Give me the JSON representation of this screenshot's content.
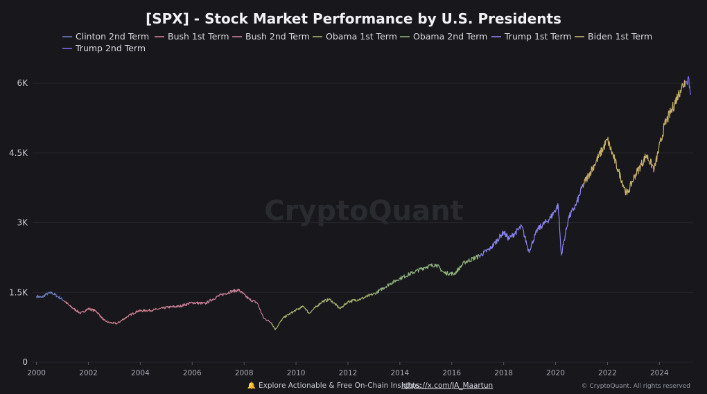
{
  "chart_data": {
    "type": "line",
    "title": "[SPX] - Stock Market Performance by U.S. Presidents",
    "ylim": [
      0,
      6300
    ],
    "xlim": [
      1999.85,
      2025.3
    ],
    "y_ticks": [
      {
        "value": 0,
        "label": "0"
      },
      {
        "value": 1500,
        "label": "1.5K"
      },
      {
        "value": 3000,
        "label": "3K"
      },
      {
        "value": 4500,
        "label": "4.5K"
      },
      {
        "value": 6000,
        "label": "6K"
      }
    ],
    "x_ticks": [
      {
        "value": 2000,
        "label": "2000"
      },
      {
        "value": 2002,
        "label": "2002"
      },
      {
        "value": 2004,
        "label": "2004"
      },
      {
        "value": 2006,
        "label": "2006"
      },
      {
        "value": 2008,
        "label": "2008"
      },
      {
        "value": 2010,
        "label": "2010"
      },
      {
        "value": 2012,
        "label": "2012"
      },
      {
        "value": 2014,
        "label": "2014"
      },
      {
        "value": 2016,
        "label": "2016"
      },
      {
        "value": 2018,
        "label": "2018"
      },
      {
        "value": 2020,
        "label": "2020"
      },
      {
        "value": 2022,
        "label": "2022"
      },
      {
        "value": 2024,
        "label": "2024"
      }
    ],
    "grid": true,
    "legend_position": "top",
    "series": [
      {
        "name": "Clinton 2nd Term",
        "color": "#6a7fc4",
        "points": [
          [
            2000.0,
            1420
          ],
          [
            2000.2,
            1390
          ],
          [
            2000.4,
            1470
          ],
          [
            2000.6,
            1490
          ],
          [
            2000.8,
            1420
          ],
          [
            2001.05,
            1330
          ]
        ]
      },
      {
        "name": "Bush 1st Term",
        "color": "#d07f8f",
        "points": [
          [
            2001.05,
            1330
          ],
          [
            2001.3,
            1200
          ],
          [
            2001.7,
            1050
          ],
          [
            2002.0,
            1150
          ],
          [
            2002.3,
            1100
          ],
          [
            2002.6,
            900
          ],
          [
            2002.8,
            850
          ],
          [
            2003.1,
            830
          ],
          [
            2003.5,
            980
          ],
          [
            2003.9,
            1100
          ],
          [
            2004.5,
            1120
          ],
          [
            2005.05,
            1180
          ]
        ]
      },
      {
        "name": "Bush 2nd Term",
        "color": "#c97f95",
        "points": [
          [
            2005.05,
            1180
          ],
          [
            2005.5,
            1200
          ],
          [
            2006.0,
            1280
          ],
          [
            2006.5,
            1260
          ],
          [
            2007.0,
            1420
          ],
          [
            2007.5,
            1520
          ],
          [
            2007.8,
            1550
          ],
          [
            2008.2,
            1350
          ],
          [
            2008.5,
            1280
          ],
          [
            2008.75,
            950
          ],
          [
            2009.05,
            850
          ]
        ]
      },
      {
        "name": "Obama 1st Term",
        "color": "#a7b06a",
        "points": [
          [
            2009.05,
            850
          ],
          [
            2009.2,
            700
          ],
          [
            2009.5,
            950
          ],
          [
            2010.0,
            1120
          ],
          [
            2010.3,
            1200
          ],
          [
            2010.5,
            1050
          ],
          [
            2011.0,
            1300
          ],
          [
            2011.3,
            1350
          ],
          [
            2011.7,
            1150
          ],
          [
            2012.0,
            1300
          ],
          [
            2012.5,
            1360
          ],
          [
            2013.05,
            1480
          ]
        ]
      },
      {
        "name": "Obama 2nd Term",
        "color": "#8fb27a",
        "points": [
          [
            2013.05,
            1480
          ],
          [
            2013.6,
            1680
          ],
          [
            2014.0,
            1800
          ],
          [
            2014.6,
            1950
          ],
          [
            2015.0,
            2050
          ],
          [
            2015.4,
            2100
          ],
          [
            2015.7,
            1920
          ],
          [
            2016.1,
            1900
          ],
          [
            2016.5,
            2150
          ],
          [
            2017.05,
            2280
          ]
        ]
      },
      {
        "name": "Trump 1st Term",
        "color": "#8a84f0",
        "points": [
          [
            2017.05,
            2280
          ],
          [
            2017.5,
            2450
          ],
          [
            2018.0,
            2800
          ],
          [
            2018.2,
            2650
          ],
          [
            2018.7,
            2920
          ],
          [
            2018.97,
            2380
          ],
          [
            2019.3,
            2850
          ],
          [
            2019.8,
            3100
          ],
          [
            2020.1,
            3380
          ],
          [
            2020.22,
            2300
          ],
          [
            2020.5,
            3100
          ],
          [
            2020.8,
            3400
          ],
          [
            2021.05,
            3800
          ]
        ]
      },
      {
        "name": "Biden 1st Term",
        "color": "#c9b06a",
        "points": [
          [
            2021.05,
            3800
          ],
          [
            2021.5,
            4250
          ],
          [
            2022.0,
            4780
          ],
          [
            2022.4,
            4150
          ],
          [
            2022.75,
            3600
          ],
          [
            2023.0,
            3950
          ],
          [
            2023.5,
            4450
          ],
          [
            2023.8,
            4150
          ],
          [
            2024.2,
            5100
          ],
          [
            2024.5,
            5450
          ],
          [
            2024.8,
            5850
          ],
          [
            2025.0,
            6050
          ]
        ]
      },
      {
        "name": "Trump 2nd Term",
        "color": "#7a6cf0",
        "points": [
          [
            2025.05,
            6050
          ],
          [
            2025.12,
            6140
          ],
          [
            2025.2,
            5750
          ]
        ]
      }
    ]
  },
  "footer": {
    "text": "Explore Actionable & Free On-Chain Insights:",
    "link": "https://x.com/JA_Maartun",
    "credit": "© CryptoQuant. All rights reserved"
  },
  "watermark": "CryptoQuant"
}
